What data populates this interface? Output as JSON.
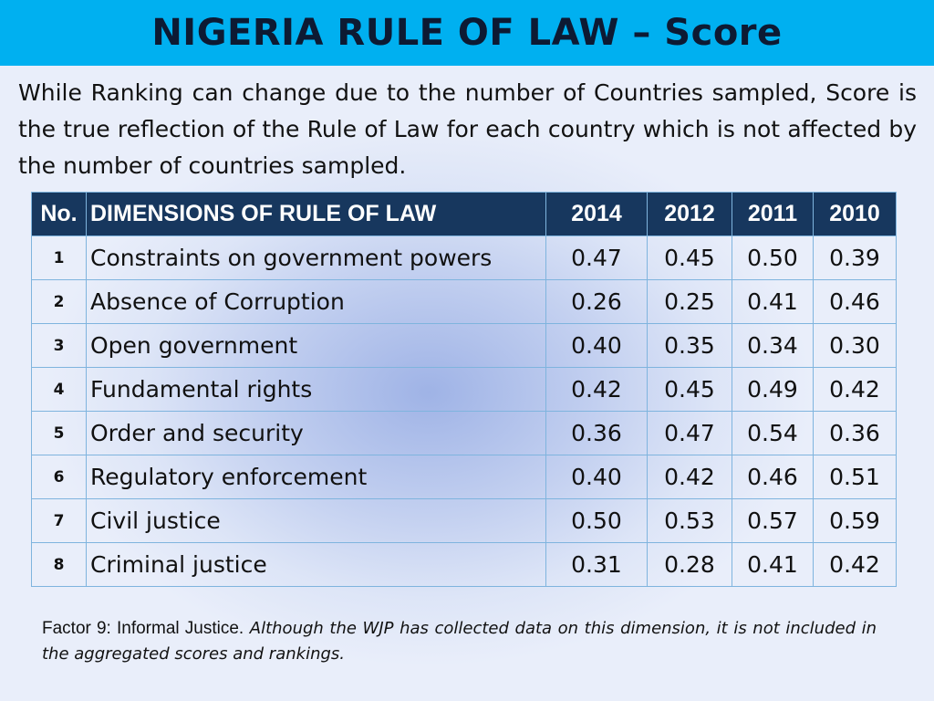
{
  "slide": {
    "title": "NIGERIA RULE OF LAW – Score",
    "intro": "While Ranking can change due to the number of Countries sampled, Score is the true reflection of the Rule of Law for each country which is not affected by the number of countries sampled."
  },
  "table": {
    "headers": [
      "No.",
      "DIMENSIONS OF RULE OF LAW",
      "2014",
      "2012",
      "2011",
      "2010"
    ],
    "rows": [
      {
        "no": "1",
        "dimension": "Constraints on government powers",
        "y2014": "0.47",
        "y2012": "0.45",
        "y2011": "0.50",
        "y2010": "0.39"
      },
      {
        "no": "2",
        "dimension": "Absence of Corruption",
        "y2014": "0.26",
        "y2012": "0.25",
        "y2011": "0.41",
        "y2010": "0.46"
      },
      {
        "no": "3",
        "dimension": "Open government",
        "y2014": "0.40",
        "y2012": "0.35",
        "y2011": "0.34",
        "y2010": "0.30"
      },
      {
        "no": "4",
        "dimension": "Fundamental rights",
        "y2014": "0.42",
        "y2012": "0.45",
        "y2011": "0.49",
        "y2010": "0.42"
      },
      {
        "no": "5",
        "dimension": "Order and security",
        "y2014": "0.36",
        "y2012": "0.47",
        "y2011": "0.54",
        "y2010": "0.36"
      },
      {
        "no": "6",
        "dimension": "Regulatory enforcement",
        "y2014": "0.40",
        "y2012": "0.42",
        "y2011": "0.46",
        "y2010": "0.51"
      },
      {
        "no": "7",
        "dimension": "Civil justice",
        "y2014": "0.50",
        "y2012": "0.53",
        "y2011": "0.57",
        "y2010": "0.59"
      },
      {
        "no": "8",
        "dimension": "Criminal justice",
        "y2014": "0.31",
        "y2012": "0.28",
        "y2011": "0.41",
        "y2010": "0.42"
      }
    ]
  },
  "footnote": {
    "lead": "Factor 9: Informal Justice.",
    "text": " Although the WJP has collected data on this dimension, it is not included in the aggregated scores and rankings."
  },
  "colors": {
    "title_bar": "#00b0f0",
    "table_header": "#17375e",
    "grid_line": "#7fb4de"
  }
}
